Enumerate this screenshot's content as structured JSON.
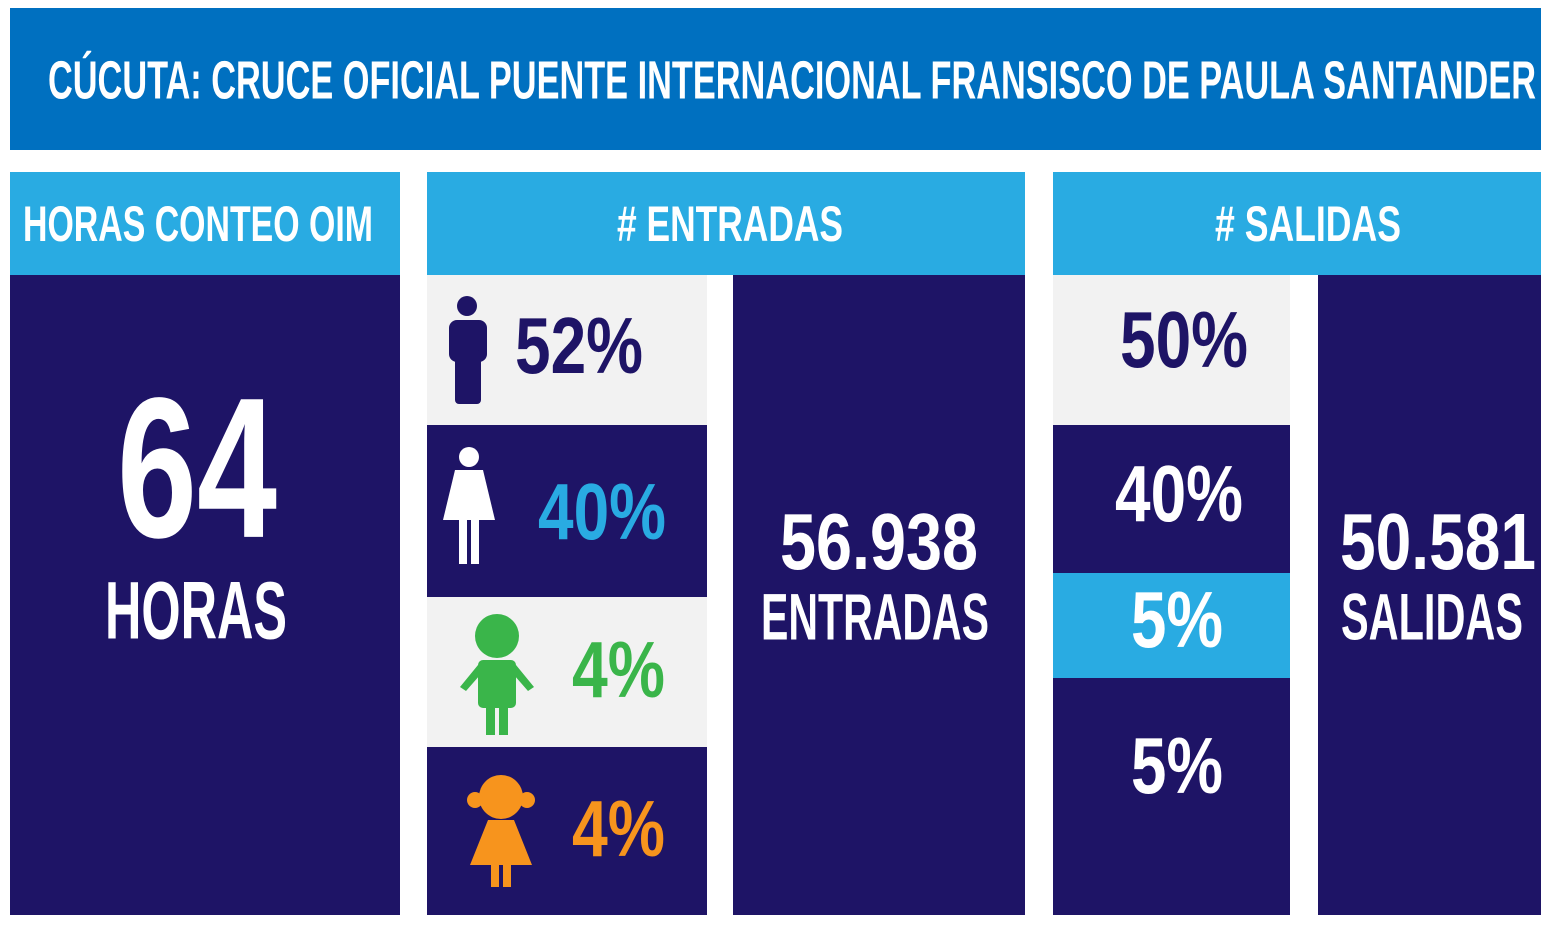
{
  "header": {
    "title": "CÚCUTA: CRUCE OFICIAL PUENTE INTERNACIONAL FRANSISCO DE PAULA SANTANDER"
  },
  "hours": {
    "heading": "HORAS CONTEO OIM",
    "value": "64",
    "unit": "HORAS"
  },
  "entries": {
    "heading": "# ENTRADAS",
    "breakdown": [
      "52%",
      "40%",
      "4%",
      "4%"
    ],
    "total": "56.938",
    "unit": "ENTRADAS"
  },
  "exits": {
    "heading": "# SALIDAS",
    "breakdown": [
      "50%",
      "40%",
      "5%",
      "5%"
    ],
    "total": "50.581",
    "unit": "SALIDAS"
  }
}
